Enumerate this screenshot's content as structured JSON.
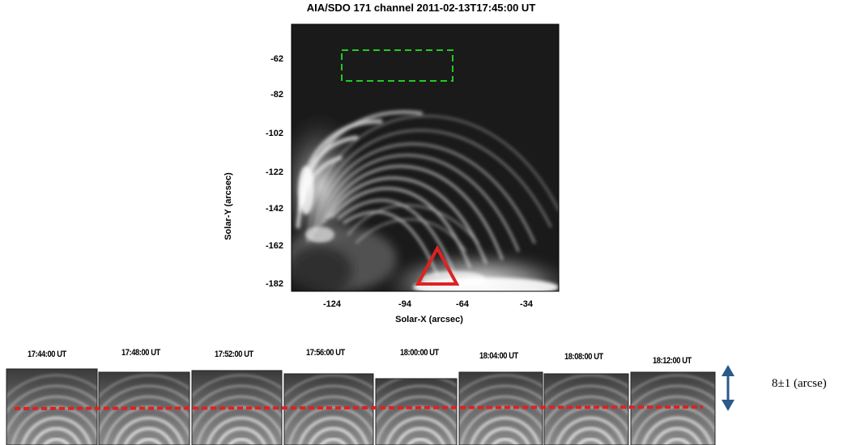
{
  "figure": {
    "title": "AIA/SDO  171  channel 2011-02-13T17:45:00  UT",
    "y_axis_label": "Solar-Y (arcsec)",
    "x_axis_label": "Solar-X (arcsec)",
    "y_ticks": [
      "-62",
      "-82",
      "-102",
      "-122",
      "-142",
      "-162",
      "-182"
    ],
    "x_ticks": [
      "-124",
      "-94",
      "-64",
      "-34"
    ],
    "roi_box_color": "#22cc22",
    "marker_color": "#dd2222"
  },
  "strips": {
    "times": [
      "17:44:00 UT",
      "17:48:00 UT",
      "17:52:00 UT",
      "17:56:00 UT",
      "18:00:00 UT",
      "18:04:00 UT",
      "18:08:00 UT",
      "18:12:00 UT"
    ],
    "dashed_line_color": "#dd2222",
    "arrow_color": "#2a5a8a",
    "scale_label": "8±1 (arcse)"
  }
}
